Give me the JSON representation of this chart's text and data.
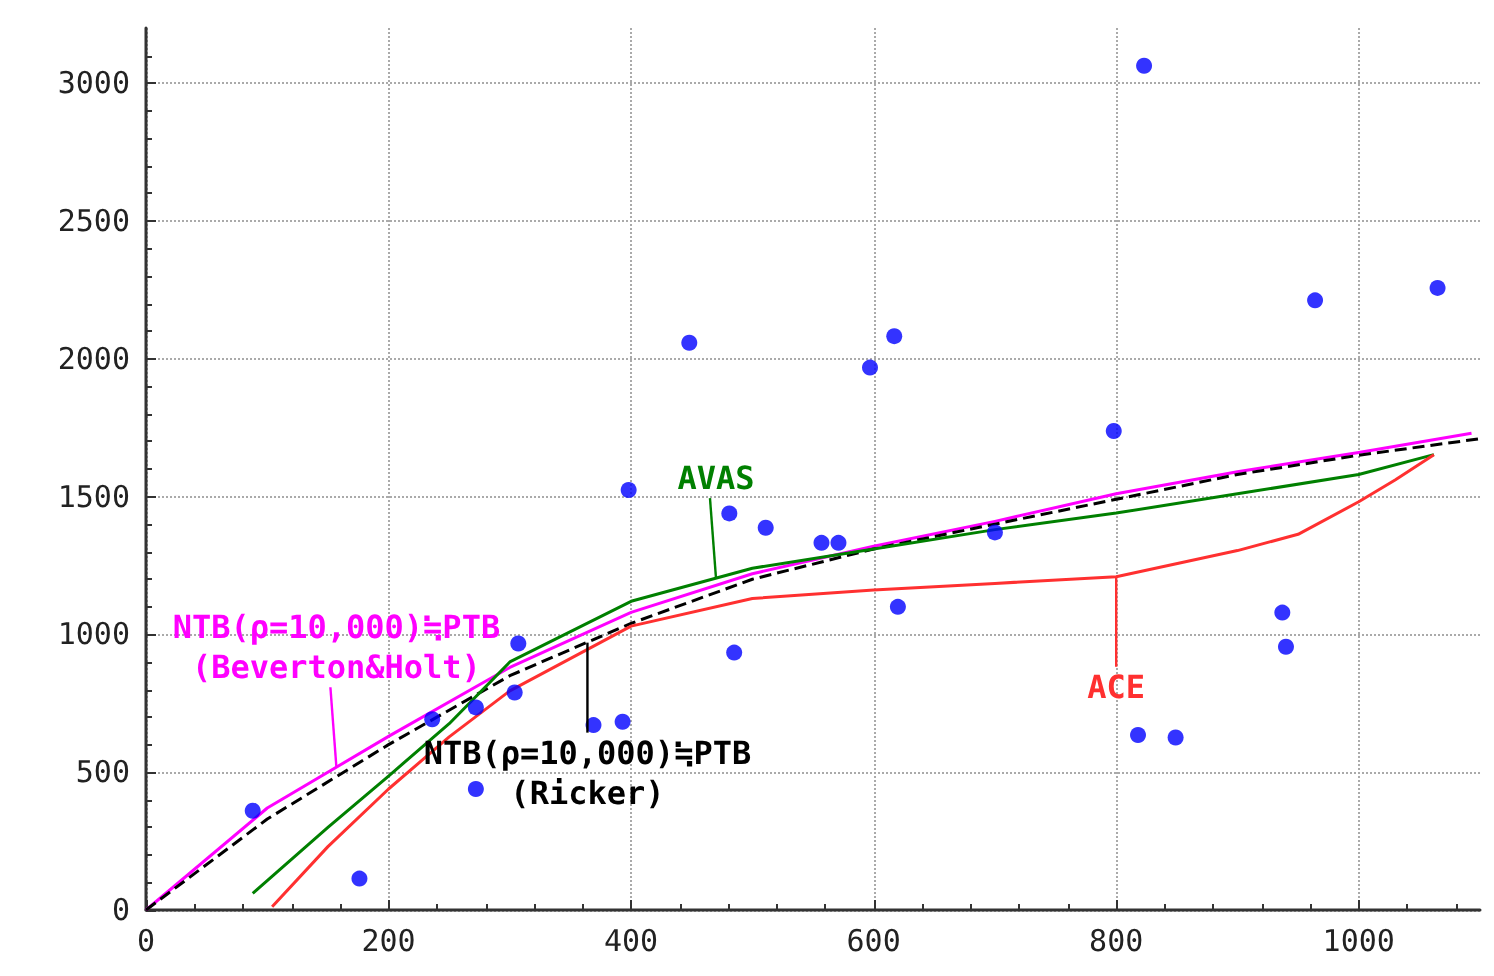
{
  "chart_data": {
    "type": "scatter",
    "xlim": [
      0,
      1100
    ],
    "ylim": [
      0,
      3200
    ],
    "xticks": [
      0,
      200,
      400,
      600,
      800,
      1000
    ],
    "yticks": [
      0,
      500,
      1000,
      1500,
      2000,
      2500,
      3000
    ],
    "grid": true,
    "series": [
      {
        "color": "#0000ff",
        "marker": "circle",
        "x": [
          88,
          176,
          236,
          272,
          272,
          307,
          304,
          369,
          393,
          398,
          448,
          481,
          511,
          485,
          557,
          571,
          597,
          617,
          700,
          620,
          823,
          798,
          818,
          849,
          937,
          940,
          964,
          1065
        ],
        "values": [
          360,
          114,
          692,
          735,
          439,
          967,
          789,
          671,
          683,
          1524,
          2058,
          1439,
          1387,
          934,
          1332,
          1332,
          1968,
          2082,
          1370,
          1100,
          3063,
          1738,
          635,
          626,
          1079,
          955,
          2212,
          2257
        ]
      },
      {
        "type": "line",
        "color": "#ff00ff",
        "marker": "none",
        "line_style": "solid",
        "x": [
          0,
          100,
          200,
          300,
          400,
          500,
          600,
          700,
          800,
          900,
          1000,
          1093
        ],
        "values": [
          0,
          370,
          630,
          880,
          1080,
          1220,
          1320,
          1410,
          1510,
          1590,
          1660,
          1730
        ]
      },
      {
        "type": "line",
        "color": "#000000",
        "marker": "none",
        "line_style": "dashed",
        "x": [
          0,
          100,
          200,
          300,
          400,
          500,
          600,
          700,
          800,
          900,
          1000,
          1100
        ],
        "values": [
          0,
          330,
          600,
          850,
          1040,
          1200,
          1310,
          1400,
          1490,
          1580,
          1650,
          1710
        ]
      },
      {
        "type": "line",
        "color": "#008000",
        "marker": "none",
        "line_style": "solid",
        "x": [
          88,
          150,
          200,
          250,
          300,
          400,
          500,
          600,
          700,
          800,
          900,
          1000,
          1062
        ],
        "values": [
          60,
          300,
          486,
          676,
          900,
          1120,
          1240,
          1310,
          1380,
          1440,
          1510,
          1580,
          1652
        ]
      },
      {
        "type": "line",
        "color": "#ff3030",
        "marker": "none",
        "line_style": "solid",
        "x": [
          104,
          150,
          200,
          250,
          300,
          400,
          500,
          600,
          700,
          800,
          900,
          950,
          1000,
          1030,
          1062
        ],
        "values": [
          12,
          230,
          439,
          628,
          795,
          1030,
          1130,
          1161,
          1185,
          1209,
          1304,
          1363,
          1481,
          1560,
          1652
        ]
      }
    ],
    "annotations": [
      {
        "text": "NTB(ρ=10,000)≒PTB\n(Beverton&Holt)",
        "x": 157,
        "y": 518
      },
      {
        "text": "AVAS",
        "x": 470,
        "y": 1204
      },
      {
        "text": "NTB(ρ=10,000)≒PTB\n(Ricker)",
        "x": 364,
        "y": 970
      },
      {
        "text": "ACE",
        "x": 800,
        "y": 1209
      }
    ]
  }
}
